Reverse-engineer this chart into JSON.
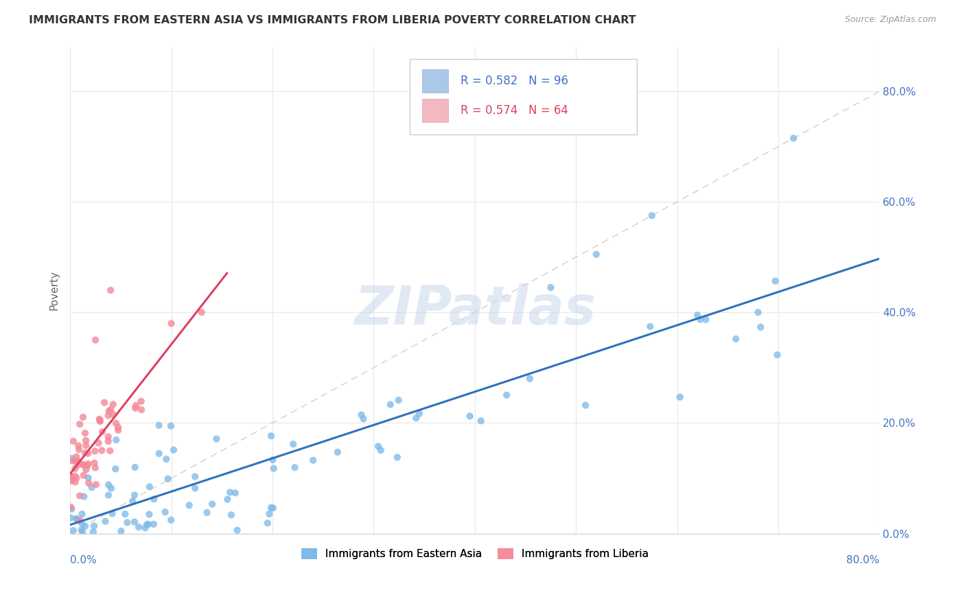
{
  "title": "IMMIGRANTS FROM EASTERN ASIA VS IMMIGRANTS FROM LIBERIA POVERTY CORRELATION CHART",
  "source": "Source: ZipAtlas.com",
  "watermark": "ZIPatlas",
  "ylabel": "Poverty",
  "legend": {
    "series1_color": "#aac8e8",
    "series2_color": "#f4b8c0",
    "R1": 0.582,
    "N1": 96,
    "R2": 0.574,
    "N2": 64
  },
  "bottom_legend": {
    "label1": "Immigrants from Eastern Asia",
    "label2": "Immigrants from Liberia"
  },
  "series1_color": "#7ab8e8",
  "series2_color": "#f48898",
  "trendline1_color": "#3070c0",
  "trendline2_color": "#e04060",
  "refline_color": "#cccccc",
  "xlim": [
    0.0,
    0.8
  ],
  "ylim": [
    0.0,
    0.88
  ],
  "yticks": [
    0.0,
    0.2,
    0.4,
    0.6,
    0.8
  ],
  "right_ytick_labels": [
    "0.0%",
    "20.0%",
    "40.0%",
    "60.0%",
    "80.0%"
  ],
  "background": "#ffffff",
  "grid_color": "#e8e8e8"
}
